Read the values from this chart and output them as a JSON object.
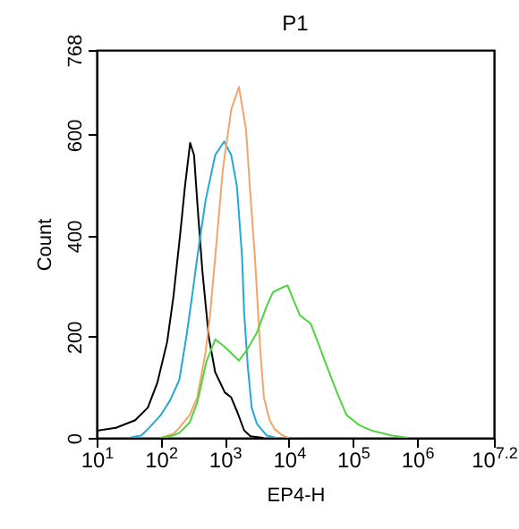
{
  "chart_data": {
    "type": "line",
    "title": "P1",
    "xlabel": "EP4-H",
    "ylabel": "Count",
    "log": "x",
    "grid": false,
    "legend": false,
    "xlim": [
      10,
      15848932
    ],
    "xticks": [
      {
        "value": 10,
        "label": "10$^{1}$"
      },
      {
        "value": 100,
        "label": "10$^{2}$"
      },
      {
        "value": 1000,
        "label": "10$^{3}$"
      },
      {
        "value": 10000,
        "label": "10$^{4}$"
      },
      {
        "value": 100000,
        "label": "10$^{5}$"
      },
      {
        "value": 1000000,
        "label": "10$^{6}$"
      },
      {
        "value": 15848932,
        "label": "10$^{7.2}$"
      }
    ],
    "ylim": [
      0,
      768
    ],
    "yticks": [
      0,
      200,
      400,
      600,
      768
    ],
    "series": [
      {
        "color": "#000000",
        "x": [
          10,
          20,
          40,
          63,
          89,
          126,
          158,
          200,
          240,
          288,
          331,
          380,
          447,
          562,
          708,
          1000,
          1260,
          1580,
          2000,
          2510,
          3980
        ],
        "values": [
          14,
          20,
          35,
          60,
          110,
          190,
          280,
          400,
          500,
          584,
          560,
          450,
          330,
          200,
          130,
          90,
          80,
          50,
          15,
          3,
          0
        ]
      },
      {
        "color": "#23a8d8",
        "x": [
          32,
          50,
          66,
          100,
          141,
          195,
          251,
          316,
          372,
          501,
          708,
          977,
          1260,
          1550,
          1860,
          2000,
          2290,
          2630,
          3160,
          4470,
          6310
        ],
        "values": [
          0,
          5,
          20,
          45,
          75,
          115,
          200,
          290,
          358,
          470,
          560,
          587,
          560,
          497,
          358,
          250,
          139,
          60,
          28,
          5,
          0
        ]
      },
      {
        "color": "#f4a46a",
        "x": [
          100,
          158,
          195,
          282,
          372,
          501,
          589,
          708,
          933,
          1260,
          1660,
          2140,
          2510,
          2950,
          3550,
          4070,
          5010,
          6030,
          7940,
          10000
        ],
        "values": [
          0,
          8,
          20,
          45,
          80,
          170,
          243,
          358,
          532,
          650,
          695,
          612,
          480,
          358,
          180,
          80,
          35,
          17,
          5,
          0
        ]
      },
      {
        "color": "#4fd43f",
        "x": [
          100,
          158,
          195,
          282,
          372,
          513,
          708,
          1000,
          1660,
          2240,
          3160,
          4470,
          5620,
          7080,
          9550,
          11200,
          14800,
          21900,
          28200,
          39800,
          56200,
          79400,
          126000,
          200000,
          398000,
          724000
        ],
        "values": [
          0,
          5,
          10,
          30,
          70,
          150,
          195,
          180,
          153,
          175,
          208,
          260,
          288,
          295,
          302,
          280,
          243,
          226,
          190,
          139,
          90,
          45,
          25,
          14,
          5,
          0
        ]
      }
    ]
  }
}
